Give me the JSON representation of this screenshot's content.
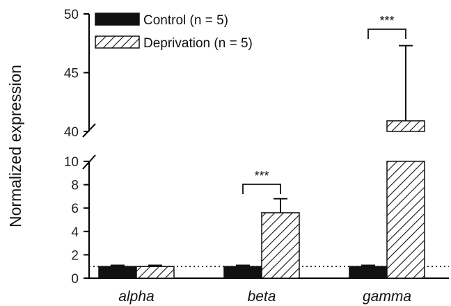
{
  "chart_data": {
    "type": "bar",
    "categories": [
      "alpha",
      "beta",
      "gamma"
    ],
    "series": [
      {
        "name": "Control",
        "n_label": "(n = 5)",
        "values": [
          1.0,
          1.0,
          1.0
        ],
        "errors": [
          0.1,
          0.1,
          0.1
        ],
        "fill": "solid",
        "color": "#111111"
      },
      {
        "name": "Deprivation",
        "n_label": "(n = 5)",
        "values": [
          1.0,
          5.6,
          40.9
        ],
        "errors": [
          0.1,
          1.2,
          6.4
        ],
        "fill": "hatched",
        "color": "#111111"
      }
    ],
    "ylabel": "Normalized expression",
    "y_axis_break": {
      "lower_range": [
        0,
        10
      ],
      "upper_range": [
        40,
        50
      ]
    },
    "lower_ticks": [
      "0",
      "2",
      "4",
      "6",
      "8",
      "10"
    ],
    "upper_ticks": [
      "40",
      "45",
      "50"
    ],
    "reference_line": {
      "value": 1,
      "style": "dotted"
    },
    "significance": [
      {
        "category": "beta",
        "label": "***"
      },
      {
        "category": "gamma",
        "label": "***"
      }
    ],
    "legend_position": "top-left"
  }
}
